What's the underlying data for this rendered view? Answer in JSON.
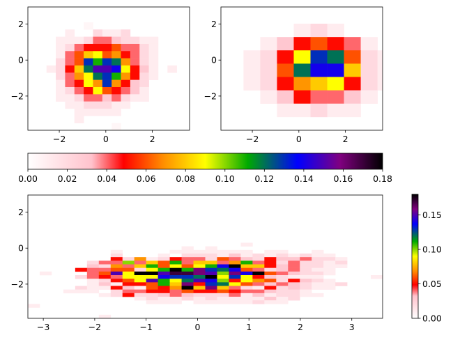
{
  "colormap": {
    "name": "gist_ncar-like pink-red-yellow-green-blue-black",
    "stops": [
      [
        0.0,
        "#ffffff"
      ],
      [
        0.18,
        "#ffc2cc"
      ],
      [
        0.27,
        "#ff0000"
      ],
      [
        0.38,
        "#ff8c00"
      ],
      [
        0.5,
        "#ffff00"
      ],
      [
        0.62,
        "#00aa00"
      ],
      [
        0.76,
        "#0000ff"
      ],
      [
        0.88,
        "#800080"
      ],
      [
        1.0,
        "#000000"
      ]
    ]
  },
  "chart_data": [
    {
      "type": "heatmap",
      "panel": "top-left",
      "title": "",
      "xlabel": "",
      "ylabel": "",
      "xlim": [
        -3.35,
        3.6
      ],
      "ylim": [
        -3.9,
        2.95
      ],
      "xticks": [
        -2,
        0,
        2
      ],
      "yticks": [
        -2,
        0,
        2
      ],
      "x0": -3.35,
      "y0": -3.9,
      "dx": 0.4,
      "dy": 0.4,
      "vmax": 0.18,
      "grid_origin": "bottom-left rows listed top-to-bottom",
      "values": [
        [
          0,
          0,
          0,
          0,
          0,
          0,
          0,
          0,
          0,
          0,
          0,
          0,
          0,
          0,
          0,
          0,
          0
        ],
        [
          0,
          0,
          0,
          0,
          0,
          0,
          0.005,
          0,
          0,
          0,
          0,
          0,
          0,
          0,
          0,
          0,
          0
        ],
        [
          0,
          0,
          0,
          0,
          0.01,
          0,
          0,
          0.02,
          0.01,
          0.01,
          0.02,
          0,
          0,
          0,
          0,
          0,
          0
        ],
        [
          0,
          0,
          0,
          0.01,
          0.01,
          0.01,
          0.02,
          0.04,
          0.04,
          0.03,
          0.02,
          0.02,
          0.01,
          0.01,
          0,
          0,
          0
        ],
        [
          0,
          0,
          0,
          0.01,
          0.02,
          0.04,
          0.05,
          0.05,
          0.05,
          0.06,
          0.04,
          0.04,
          0.02,
          0.01,
          0,
          0,
          0
        ],
        [
          0,
          0,
          0,
          0.01,
          0.04,
          0.06,
          0.08,
          0.09,
          0.06,
          0.07,
          0.05,
          0.04,
          0.02,
          0.01,
          0,
          0,
          0
        ],
        [
          0,
          0,
          0,
          0.02,
          0.04,
          0.06,
          0.13,
          0.11,
          0.13,
          0.12,
          0.07,
          0.04,
          0.02,
          0.01,
          0,
          0,
          0
        ],
        [
          0,
          0,
          0.01,
          0.02,
          0.05,
          0.08,
          0.12,
          0.15,
          0.15,
          0.14,
          0.09,
          0.05,
          0.03,
          0.01,
          0,
          0.01,
          0
        ],
        [
          0,
          0,
          0,
          0.02,
          0.04,
          0.07,
          0.09,
          0.12,
          0.13,
          0.11,
          0.07,
          0.05,
          0.02,
          0.01,
          0,
          0,
          0
        ],
        [
          0,
          0,
          0,
          0.01,
          0.04,
          0.05,
          0.09,
          0.07,
          0.13,
          0.07,
          0.05,
          0.03,
          0.02,
          0,
          0,
          0,
          0
        ],
        [
          0,
          0,
          0,
          0.01,
          0.02,
          0.04,
          0.05,
          0.09,
          0.06,
          0.05,
          0.04,
          0.03,
          0.01,
          0,
          0,
          0,
          0
        ],
        [
          0,
          0,
          0,
          0.01,
          0.01,
          0.02,
          0.04,
          0.04,
          0.03,
          0.04,
          0.02,
          0.01,
          0.01,
          0,
          0,
          0,
          0
        ],
        [
          0,
          0,
          0,
          0,
          0.01,
          0.01,
          0.02,
          0.02,
          0.02,
          0.01,
          0.01,
          0,
          0,
          0,
          0,
          0,
          0
        ],
        [
          0,
          0,
          0,
          0,
          0,
          0.01,
          0.01,
          0.01,
          0.01,
          0.01,
          0,
          0,
          0,
          0,
          0,
          0,
          0
        ],
        [
          0,
          0,
          0,
          0,
          0,
          0.01,
          0,
          0,
          0,
          0,
          0,
          0,
          0,
          0,
          0,
          0,
          0
        ],
        [
          0,
          0,
          0,
          0,
          0,
          0,
          0,
          0,
          0,
          0.005,
          0,
          0,
          0,
          0,
          0,
          0,
          0
        ]
      ]
    },
    {
      "type": "heatmap",
      "panel": "top-right",
      "title": "",
      "xlabel": "",
      "ylabel": "",
      "xlim": [
        -3.35,
        3.6
      ],
      "ylim": [
        -3.9,
        2.95
      ],
      "xticks": [
        -2,
        0,
        2
      ],
      "yticks": [
        -2,
        0,
        2
      ],
      "x0": -3.1,
      "y0": -3.9,
      "dx": 0.72,
      "dy": 0.74,
      "vmax": 0.18,
      "grid_origin": "bottom-left rows listed top-to-bottom",
      "values": [
        [
          0,
          0,
          0,
          0,
          0,
          0,
          0,
          0,
          0,
          0
        ],
        [
          0,
          0,
          0,
          0,
          0.01,
          0.02,
          0.01,
          0,
          0,
          0
        ],
        [
          0,
          0,
          0.01,
          0.03,
          0.05,
          0.06,
          0.05,
          0.04,
          0.01,
          0
        ],
        [
          0,
          0.01,
          0.02,
          0.05,
          0.09,
          0.13,
          0.12,
          0.06,
          0.02,
          0.01
        ],
        [
          0,
          0.01,
          0.02,
          0.06,
          0.12,
          0.14,
          0.14,
          0.08,
          0.02,
          0.01
        ],
        [
          0,
          0.01,
          0.02,
          0.05,
          0.07,
          0.08,
          0.09,
          0.05,
          0.02,
          0.01
        ],
        [
          0,
          0,
          0.01,
          0.03,
          0.05,
          0.04,
          0.04,
          0.03,
          0.01,
          0
        ],
        [
          0,
          0,
          0,
          0.01,
          0.01,
          0.02,
          0.01,
          0.01,
          0,
          0
        ],
        [
          0,
          0,
          0,
          0,
          0,
          0,
          0,
          0,
          0,
          0
        ]
      ]
    },
    {
      "type": "heatmap",
      "panel": "bottom",
      "title": "",
      "xlabel": "",
      "ylabel": "",
      "xlim": [
        -3.3,
        3.6
      ],
      "ylim": [
        -3.9,
        2.95
      ],
      "xticks": [
        -3,
        -2,
        -1,
        0,
        1,
        2,
        3
      ],
      "yticks": [
        -2,
        0,
        2
      ],
      "x0": -3.3,
      "y0": -3.9,
      "dx": 0.23,
      "dy": 0.2,
      "vmax": 0.18,
      "grid_origin": "bottom-left rows listed top-to-bottom",
      "values": [
        [
          0,
          0,
          0,
          0,
          0,
          0,
          0,
          0,
          0,
          0,
          0,
          0,
          0,
          0,
          0,
          0,
          0,
          0,
          0,
          0,
          0,
          0,
          0,
          0,
          0,
          0,
          0,
          0,
          0,
          0
        ],
        [
          0,
          0,
          0,
          0,
          0,
          0,
          0,
          0,
          0,
          0,
          0,
          0,
          0,
          0,
          0,
          0,
          0,
          0,
          0,
          0,
          0,
          0,
          0,
          0,
          0,
          0,
          0,
          0,
          0,
          0
        ],
        [
          0,
          0,
          0,
          0,
          0,
          0,
          0,
          0,
          0,
          0,
          0,
          0,
          0,
          0,
          0,
          0,
          0,
          0,
          0,
          0,
          0,
          0,
          0,
          0,
          0,
          0,
          0,
          0,
          0,
          0
        ],
        [
          0,
          0,
          0,
          0,
          0,
          0,
          0,
          0,
          0,
          0,
          0,
          0,
          0,
          0,
          0,
          0,
          0,
          0,
          0.01,
          0,
          0,
          0,
          0,
          0,
          0,
          0,
          0,
          0,
          0,
          0
        ],
        [
          0,
          0,
          0,
          0,
          0,
          0,
          0,
          0,
          0,
          0,
          0,
          0,
          0,
          0.01,
          0,
          0.01,
          0,
          0,
          0,
          0,
          0,
          0,
          0,
          0,
          0,
          0,
          0,
          0,
          0,
          0
        ],
        [
          0,
          0,
          0,
          0,
          0,
          0,
          0,
          0.01,
          0,
          0,
          0,
          0,
          0.01,
          0.01,
          0.01,
          0.01,
          0.01,
          0.01,
          0.01,
          0,
          0.01,
          0.01,
          0,
          0,
          0.01,
          0,
          0,
          0,
          0,
          0
        ],
        [
          0,
          0,
          0,
          0,
          0,
          0,
          0,
          0.02,
          0,
          0,
          0,
          0.01,
          0,
          0.02,
          0.02,
          0.02,
          0.01,
          0.03,
          0.01,
          0.02,
          0.01,
          0.02,
          0.01,
          0.02,
          0.01,
          0.01,
          0,
          0,
          0,
          0
        ],
        [
          0,
          0,
          0,
          0,
          0,
          0,
          0,
          0.05,
          0.02,
          0.07,
          0.01,
          0.02,
          0.05,
          0.04,
          0.04,
          0.02,
          0.06,
          0.04,
          0.03,
          0.02,
          0.05,
          0.03,
          0.03,
          0.04,
          0.02,
          0.02,
          0.01,
          0,
          0,
          0
        ],
        [
          0,
          0,
          0,
          0,
          0,
          0.02,
          0.04,
          0.04,
          0.1,
          0.04,
          0.08,
          0.06,
          0.11,
          0.04,
          0.08,
          0.08,
          0.04,
          0.07,
          0.11,
          0.04,
          0.05,
          0.02,
          0.04,
          0.02,
          0.02,
          0.01,
          0.02,
          0,
          0,
          0
        ],
        [
          0,
          0,
          0,
          0,
          0,
          0.03,
          0.02,
          0.07,
          0.04,
          0.08,
          0.11,
          0.06,
          0.09,
          0.06,
          0.09,
          0.11,
          0.14,
          0.18,
          0.08,
          0.08,
          0.05,
          0.03,
          0.04,
          0.02,
          0.02,
          0.01,
          0.01,
          0,
          0,
          0
        ],
        [
          0,
          0,
          0,
          0,
          0.05,
          0.04,
          0.04,
          0.06,
          0.06,
          0.02,
          0.09,
          0.11,
          0.18,
          0.11,
          0.16,
          0.13,
          0.12,
          0.14,
          0.06,
          0.04,
          0.02,
          0.03,
          0.04,
          0.02,
          0.01,
          0.01,
          0,
          0,
          0,
          0
        ],
        [
          0,
          0.01,
          0,
          0,
          0,
          0.04,
          0.06,
          0.15,
          0.09,
          0.18,
          0.18,
          0.15,
          0.17,
          0.17,
          0.16,
          0.15,
          0.1,
          0.16,
          0.14,
          0.18,
          0.06,
          0.04,
          0.03,
          0.02,
          0.02,
          0.01,
          0,
          0,
          0,
          0
        ],
        [
          0,
          0,
          0,
          0,
          0.02,
          0.04,
          0.05,
          0.04,
          0.09,
          0.09,
          0.09,
          0.14,
          0.13,
          0.13,
          0.12,
          0.18,
          0.09,
          0.13,
          0.09,
          0.05,
          0.03,
          0.02,
          0.01,
          0.01,
          0.01,
          0,
          0,
          0,
          0,
          0.01
        ],
        [
          0,
          0,
          0,
          0,
          0,
          0.01,
          0.02,
          0.05,
          0.06,
          0.09,
          0.15,
          0.11,
          0.09,
          0.12,
          0.15,
          0.14,
          0.1,
          0.05,
          0.09,
          0.07,
          0.06,
          0.02,
          0.05,
          0.03,
          0.02,
          0.01,
          0,
          0,
          0,
          0
        ],
        [
          0,
          0,
          0,
          0,
          0,
          0.01,
          0.03,
          0.01,
          0.05,
          0.05,
          0.06,
          0.11,
          0.08,
          0.16,
          0.05,
          0.13,
          0.12,
          0.09,
          0.06,
          0.04,
          0.03,
          0.04,
          0.03,
          0.02,
          0.01,
          0.01,
          0.02,
          0,
          0,
          0
        ],
        [
          0,
          0,
          0,
          0,
          0.02,
          0.01,
          0.01,
          0.05,
          0.03,
          0.01,
          0.06,
          0.05,
          0.07,
          0.18,
          0.08,
          0.16,
          0.08,
          0.04,
          0.02,
          0.01,
          0.05,
          0.02,
          0.03,
          0.02,
          0.01,
          0.01,
          0,
          0,
          0,
          0
        ],
        [
          0,
          0,
          0,
          0.01,
          0.01,
          0.01,
          0,
          0.02,
          0.04,
          0.04,
          0.05,
          0.05,
          0.04,
          0.06,
          0.05,
          0.05,
          0.06,
          0.05,
          0.04,
          0.04,
          0.03,
          0.02,
          0.02,
          0.01,
          0,
          0,
          0,
          0,
          0,
          0
        ],
        [
          0,
          0,
          0,
          0,
          0,
          0,
          0.01,
          0.02,
          0.05,
          0.02,
          0.02,
          0.03,
          0.04,
          0.03,
          0.02,
          0.02,
          0.02,
          0.04,
          0.01,
          0.03,
          0.01,
          0.02,
          0.02,
          0.01,
          0.01,
          0,
          0,
          0,
          0,
          0
        ],
        [
          0,
          0,
          0,
          0,
          0,
          0,
          0,
          0,
          0,
          0.01,
          0.02,
          0.01,
          0.01,
          0.02,
          0.01,
          0.02,
          0.01,
          0.01,
          0.01,
          0.01,
          0.03,
          0.01,
          0.02,
          0,
          0,
          0,
          0,
          0,
          0,
          0
        ],
        [
          0,
          0,
          0,
          0,
          0,
          0,
          0,
          0,
          0,
          0,
          0.01,
          0.01,
          0.01,
          0,
          0.01,
          0.01,
          0.01,
          0.01,
          0.01,
          0.02,
          0.01,
          0.01,
          0,
          0,
          0,
          0,
          0,
          0,
          0,
          0
        ],
        [
          0.01,
          0,
          0,
          0,
          0,
          0,
          0,
          0,
          0,
          0,
          0,
          0,
          0,
          0,
          0,
          0,
          0,
          0,
          0,
          0,
          0,
          0,
          0,
          0,
          0,
          0,
          0,
          0,
          0,
          0
        ],
        [
          0,
          0,
          0,
          0,
          0,
          0,
          0,
          0,
          0,
          0,
          0,
          0,
          0,
          0,
          0,
          0,
          0,
          0,
          0,
          0,
          0,
          0,
          0,
          0,
          0,
          0,
          0,
          0,
          0,
          0
        ],
        [
          0,
          0,
          0,
          0,
          0,
          0,
          0,
          0,
          0,
          0,
          0,
          0,
          0,
          0,
          0,
          0,
          0,
          0,
          0,
          0,
          0,
          0,
          0,
          0,
          0,
          0,
          0,
          0,
          0,
          0
        ],
        [
          0,
          0,
          0,
          0,
          0,
          0,
          0.01,
          0,
          0,
          0,
          0,
          0,
          0,
          0,
          0,
          0,
          0,
          0,
          0,
          0,
          0,
          0,
          0,
          0,
          0,
          0,
          0,
          0,
          0,
          0
        ]
      ]
    },
    {
      "type": "colorbar",
      "panel": "horizontal-colorbar",
      "orientation": "horizontal",
      "range": [
        0,
        0.18
      ],
      "ticks": [
        "0.00",
        "0.02",
        "0.04",
        "0.06",
        "0.08",
        "0.10",
        "0.12",
        "0.14",
        "0.16",
        "0.18"
      ],
      "tick_values": [
        0,
        0.02,
        0.04,
        0.06,
        0.08,
        0.1,
        0.12,
        0.14,
        0.16,
        0.18
      ]
    },
    {
      "type": "colorbar",
      "panel": "vertical-colorbar",
      "orientation": "vertical",
      "range": [
        0,
        0.18
      ],
      "ticks": [
        "0.00",
        "0.05",
        "0.10",
        "0.15"
      ],
      "tick_values": [
        0,
        0.05,
        0.1,
        0.15
      ]
    }
  ]
}
